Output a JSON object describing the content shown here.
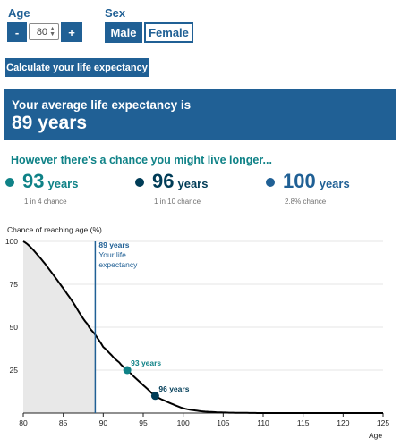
{
  "form": {
    "age_label": "Age",
    "age_minus": "-",
    "age_value": "80",
    "age_plus": "+",
    "sex_label": "Sex",
    "sex_options": [
      "Male",
      "Female"
    ],
    "sex_selected": "Male",
    "calculate_label": "Calculate your life expectancy"
  },
  "result": {
    "headline": "Your average life expectancy is",
    "value": "89 years"
  },
  "chances": {
    "title": "However there's a chance you might live longer...",
    "items": [
      {
        "age": "93",
        "unit": "years",
        "note": "1 in 4 chance",
        "color": "#0f8287"
      },
      {
        "age": "96",
        "unit": "years",
        "note": "1 in 10 chance",
        "color": "#003c57"
      },
      {
        "age": "100",
        "unit": "years",
        "note": "2.8% chance",
        "color": "#206095"
      }
    ]
  },
  "chart_data": {
    "type": "area",
    "ylabel": "Chance of reaching age (%)",
    "xlabel": "Age",
    "xlim": [
      80,
      125
    ],
    "ylim": [
      0,
      100
    ],
    "xticks": [
      80,
      85,
      90,
      95,
      100,
      105,
      110,
      115,
      120,
      125
    ],
    "yticks": [
      25,
      50,
      75,
      100
    ],
    "x": [
      80,
      82,
      84,
      86,
      88,
      89,
      90,
      92,
      93,
      94,
      95,
      96.5,
      98,
      100,
      102,
      104,
      106,
      110,
      115,
      120,
      125
    ],
    "y": [
      100,
      91,
      79,
      66,
      52,
      45.6,
      38.5,
      29.5,
      25,
      20.5,
      16.2,
      10,
      6.5,
      2.8,
      1.2,
      0.5,
      0.2,
      0,
      0,
      0,
      0
    ],
    "shaded_until": 89,
    "life_expectancy_line": {
      "x": 89,
      "label_lines": [
        "89 years",
        "Your life",
        "expectancy"
      ]
    },
    "markers": [
      {
        "x": 93,
        "y": 25,
        "label": "93 years",
        "color": "#0f8287"
      },
      {
        "x": 96.5,
        "y": 10,
        "label": "96 years",
        "color": "#003c57"
      }
    ],
    "line_color": "#000000",
    "area_color": "#e8e8e8",
    "grid": true
  }
}
